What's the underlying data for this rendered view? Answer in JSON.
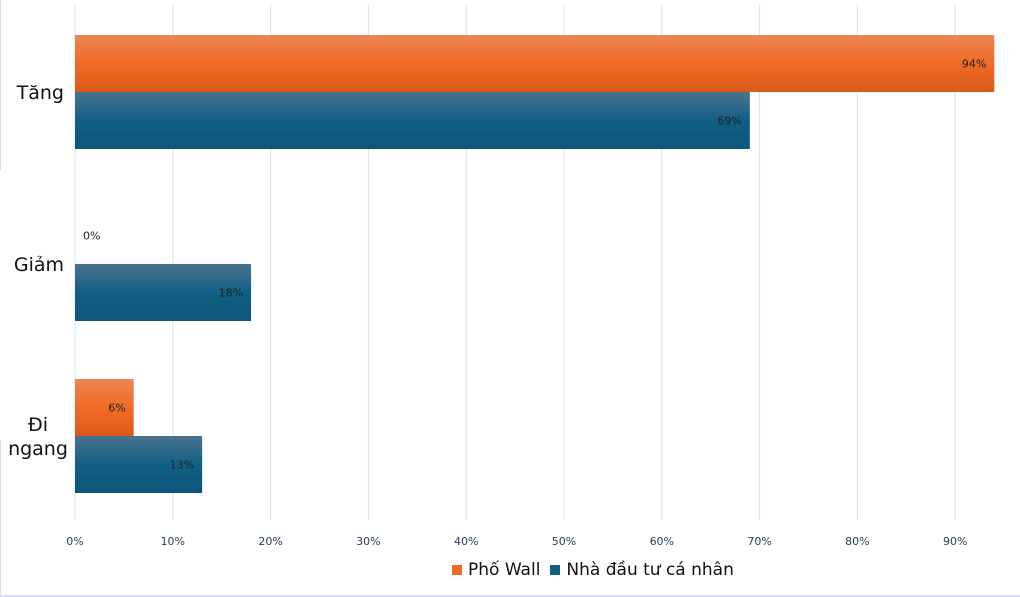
{
  "chart_data": {
    "type": "bar",
    "orientation": "horizontal",
    "categories": [
      "Tăng",
      "Giảm",
      "Đi ngang"
    ],
    "series": [
      {
        "name": "Phố Wall",
        "values": [
          94,
          0,
          6
        ],
        "color": "#ec6a24"
      },
      {
        "name": "Nhà đầu tư cá nhân",
        "values": [
          69,
          18,
          13
        ],
        "color": "#115e85"
      }
    ],
    "data_labels": [
      [
        "94%",
        "0%",
        "6%"
      ],
      [
        "69%",
        "18%",
        "13%"
      ]
    ],
    "xlim": [
      0,
      94
    ],
    "xticks": [
      "0%",
      "10%",
      "20%",
      "30%",
      "40%",
      "50%",
      "60%",
      "70%",
      "80%",
      "90%"
    ],
    "grid": true,
    "legend": "bottom"
  }
}
